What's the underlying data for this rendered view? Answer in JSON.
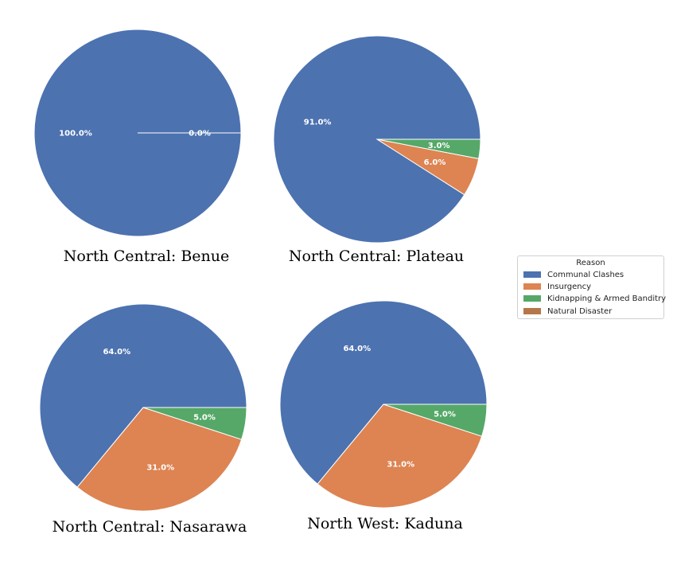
{
  "chart_data": [
    {
      "type": "pie",
      "title": "North Central: Benue",
      "categories": [
        "Communal Clashes",
        "Insurgency",
        "Kidnapping & Armed Banditry",
        "Natural Disaster"
      ],
      "values": [
        100.0,
        0.0,
        0.0,
        0.0
      ],
      "data_labels": [
        "100.0%",
        "0.0%",
        "",
        ""
      ]
    },
    {
      "type": "pie",
      "title": "North Central: Plateau",
      "categories": [
        "Communal Clashes",
        "Insurgency",
        "Kidnapping & Armed Banditry",
        "Natural Disaster"
      ],
      "values": [
        91.0,
        6.0,
        3.0,
        0.0
      ],
      "data_labels": [
        "91.0%",
        "6.0%",
        "3.0%",
        ""
      ]
    },
    {
      "type": "pie",
      "title": "North Central: Nasarawa",
      "categories": [
        "Communal Clashes",
        "Insurgency",
        "Kidnapping & Armed Banditry",
        "Natural Disaster"
      ],
      "values": [
        64.0,
        31.0,
        5.0,
        0.0
      ],
      "data_labels": [
        "64.0%",
        "31.0%",
        "5.0%",
        ""
      ]
    },
    {
      "type": "pie",
      "title": "North West: Kaduna",
      "categories": [
        "Communal Clashes",
        "Insurgency",
        "Kidnapping & Armed Banditry",
        "Natural Disaster"
      ],
      "values": [
        64.0,
        31.0,
        5.0,
        0.0
      ],
      "data_labels": [
        "64.0%",
        "31.0%",
        "5.0%",
        ""
      ]
    }
  ],
  "legend": {
    "title": "Reason",
    "placement": "right",
    "items": [
      {
        "label": "Communal Clashes",
        "color": "#4c72b0"
      },
      {
        "label": "Insurgency",
        "color": "#dd8452"
      },
      {
        "label": "Kidnapping & Armed Banditry",
        "color": "#55a868"
      },
      {
        "label": "Natural Disaster",
        "color": "#b5774a"
      }
    ]
  },
  "colors": [
    "#4c72b0",
    "#dd8452",
    "#55a868",
    "#b5774a"
  ]
}
